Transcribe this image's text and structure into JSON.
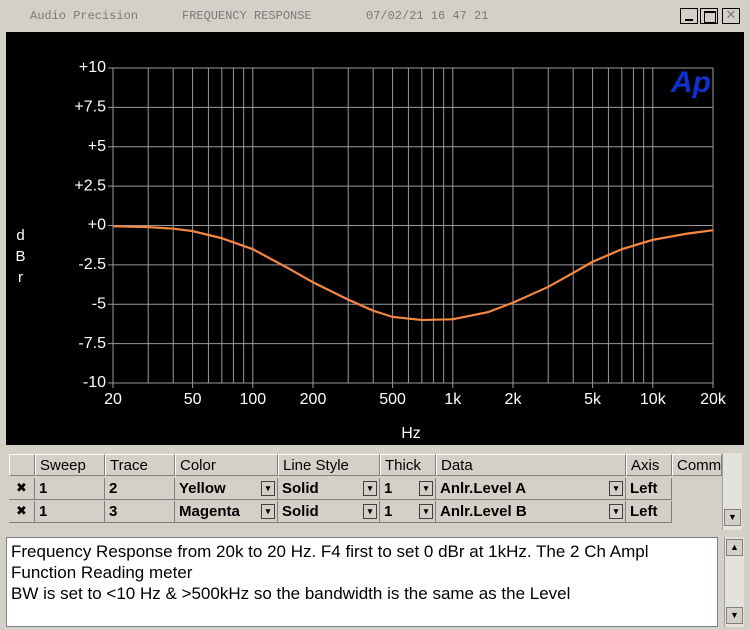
{
  "window": {
    "app": "Audio Precision",
    "title": "FREQUENCY RESPONSE",
    "timestamp": "07/02/21 16 47 21"
  },
  "chart_data": {
    "type": "line",
    "logo": "Ap",
    "x_label": "Hz",
    "y_label": "dBr",
    "x": [
      20,
      30,
      40,
      50,
      70,
      100,
      150,
      200,
      300,
      400,
      500,
      700,
      1000,
      1500,
      2000,
      3000,
      4000,
      5000,
      7000,
      10000,
      15000,
      20000
    ],
    "series": [
      {
        "color": "#e0508a",
        "values": [
          -0.05,
          -0.1,
          -0.2,
          -0.37,
          -0.82,
          -1.52,
          -2.72,
          -3.62,
          -4.72,
          -5.42,
          -5.8,
          -6.0,
          -5.95,
          -5.5,
          -4.9,
          -3.9,
          -3.02,
          -2.32,
          -1.52,
          -0.92,
          -0.52,
          -0.3
        ]
      },
      {
        "color": "#f28a3a",
        "values": [
          -0.05,
          -0.1,
          -0.2,
          -0.35,
          -0.8,
          -1.5,
          -2.7,
          -3.6,
          -4.7,
          -5.4,
          -5.8,
          -6.0,
          -5.95,
          -5.5,
          -4.9,
          -3.9,
          -3.0,
          -2.3,
          -1.5,
          -0.9,
          -0.5,
          -0.3
        ]
      }
    ],
    "xlim": [
      20,
      20000
    ],
    "ylim": [
      -10,
      10
    ],
    "log_x": true,
    "grid": true,
    "xticks": [
      20,
      50,
      100,
      200,
      500,
      {
        "value": 1000,
        "label": "1k"
      },
      {
        "value": 2000,
        "label": "2k"
      },
      {
        "value": 5000,
        "label": "5k"
      },
      {
        "value": 10000,
        "label": "10k"
      },
      {
        "value": 20000,
        "label": "20k"
      }
    ],
    "x_minor_grid": [
      30,
      40,
      60,
      70,
      80,
      90,
      300,
      400,
      600,
      700,
      800,
      900,
      3000,
      4000,
      6000,
      7000,
      8000,
      9000
    ],
    "yticks": [
      {
        "value": 10,
        "label": "+10"
      },
      {
        "value": 7.5,
        "label": "+7.5"
      },
      {
        "value": 5,
        "label": "+5"
      },
      {
        "value": 2.5,
        "label": "+2.5"
      },
      {
        "value": 0,
        "label": "+0"
      },
      -2.5,
      -5,
      -7.5,
      -10
    ]
  },
  "table": {
    "headers": [
      "Sweep",
      "Trace",
      "Color",
      "Line Style",
      "Thick",
      "Data",
      "Axis",
      "Comm"
    ],
    "rows": [
      [
        "1",
        "2",
        "Yellow",
        "Solid",
        "1",
        "Anlr.Level A",
        "Left"
      ],
      [
        "1",
        "3",
        "Magenta",
        "Solid",
        "1",
        "Anlr.Level B",
        "Left"
      ]
    ]
  },
  "notes": [
    "Frequency Response from 20k to 20 Hz.  F4 first to set 0 dBr at 1kHz.  The 2 Ch Ampl Function Reading meter",
    "BW is set to <10 Hz & >500kHz so the bandwidth is the same as the Level"
  ]
}
